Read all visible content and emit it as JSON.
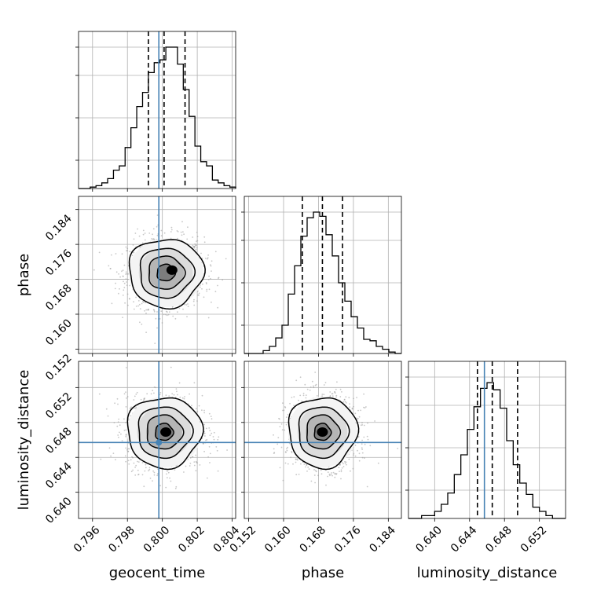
{
  "chart_data": {
    "type": "corner",
    "parameters": [
      "geocent_time",
      "phase",
      "luminosity_distance"
    ],
    "axis_labels": {
      "geocent_time": "geocent_time",
      "phase": "phase",
      "luminosity_distance": "luminosity_distance"
    },
    "ranges": {
      "geocent_time": [
        0.7952,
        0.8042
      ],
      "phase": [
        0.151,
        0.187
      ],
      "luminosity_distance": [
        0.637,
        0.655
      ]
    },
    "ticks": {
      "geocent_time": [
        0.796,
        0.798,
        0.8,
        0.802,
        0.804
      ],
      "phase": [
        0.152,
        0.16,
        0.168,
        0.176,
        0.184
      ],
      "luminosity_distance": [
        0.64,
        0.644,
        0.648,
        0.652
      ]
    },
    "tick_labels": {
      "geocent_time": [
        "0.796",
        "0.798",
        "0.800",
        "0.802",
        "0.804"
      ],
      "phase": [
        "0.152",
        "0.160",
        "0.168",
        "0.176",
        "0.184"
      ],
      "luminosity_distance": [
        "0.640",
        "0.644",
        "0.648",
        "0.652"
      ]
    },
    "truth_color": "#4682b4",
    "truths": {
      "geocent_time": 0.7998,
      "phase": null,
      "luminosity_distance": 0.6457
    },
    "quantiles": {
      "geocent_time": [
        0.7992,
        0.8001,
        0.8013
      ],
      "phase": [
        0.1643,
        0.1689,
        0.1735
      ],
      "luminosity_distance": [
        0.6449,
        0.6466,
        0.6495
      ]
    },
    "histograms": {
      "geocent_time": [
        0.0,
        0.0,
        0.01,
        0.02,
        0.04,
        0.07,
        0.13,
        0.16,
        0.29,
        0.43,
        0.58,
        0.68,
        0.82,
        0.89,
        0.91,
        1.0,
        1.0,
        0.88,
        0.7,
        0.51,
        0.3,
        0.19,
        0.16,
        0.06,
        0.04,
        0.02,
        0.01
      ],
      "phase": [
        0.0,
        0.0,
        0.0,
        0.02,
        0.05,
        0.11,
        0.2,
        0.42,
        0.62,
        0.83,
        0.96,
        1.0,
        0.97,
        0.84,
        0.69,
        0.5,
        0.37,
        0.26,
        0.18,
        0.1,
        0.09,
        0.05,
        0.03,
        0.01,
        0.0
      ],
      "luminosity_distance": [
        0.0,
        0.0,
        0.02,
        0.02,
        0.05,
        0.1,
        0.18,
        0.31,
        0.45,
        0.63,
        0.79,
        0.92,
        0.96,
        0.91,
        0.78,
        0.55,
        0.38,
        0.25,
        0.17,
        0.08,
        0.05,
        0.02,
        0.0,
        0.0
      ]
    },
    "pairs": [
      {
        "x": "geocent_time",
        "y": "phase",
        "center": [
          0.8002,
          0.1695
        ],
        "peak": [
          0.80055,
          0.1701
        ],
        "sigma": [
          0.00095,
          0.0035
        ],
        "contour_scales": [
          0.35,
          0.7,
          1.05,
          1.45
        ]
      },
      {
        "x": "geocent_time",
        "y": "luminosity_distance",
        "center": [
          0.8001,
          0.6469
        ],
        "peak": [
          0.8002,
          0.6469
        ],
        "sigma": [
          0.00095,
          0.0018
        ],
        "contour_scales": [
          0.35,
          0.7,
          1.05,
          1.45
        ]
      },
      {
        "x": "phase",
        "y": "luminosity_distance",
        "center": [
          0.1689,
          0.6469
        ],
        "peak": [
          0.1689,
          0.6469
        ],
        "sigma": [
          0.0035,
          0.0018
        ],
        "contour_scales": [
          0.35,
          0.7,
          1.05,
          1.45
        ]
      }
    ],
    "grid": true,
    "legend": "none"
  }
}
